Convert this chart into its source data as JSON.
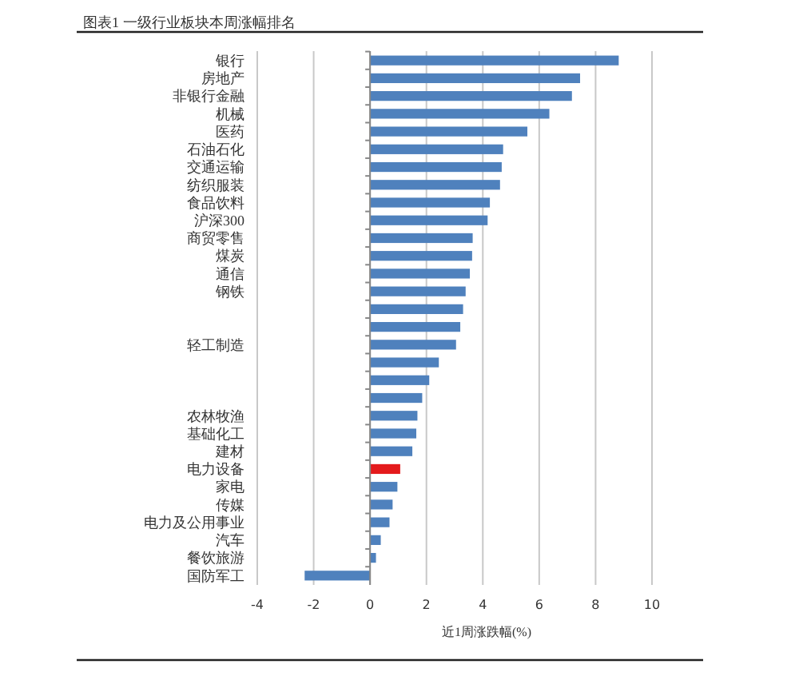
{
  "chart_data": {
    "type": "bar",
    "orientation": "horizontal",
    "title": "图表1 一级行业板块本周涨幅排名",
    "xlabel": "近1周涨跌幅(%)",
    "categories": [
      "银行",
      "房地产",
      "非银行金融",
      "机械",
      "医药",
      "石油石化",
      "交通运输",
      "纺织服装",
      "食品饮料",
      "沪深300",
      "商贸零售",
      "煤炭",
      "通信",
      "钢铁",
      null,
      null,
      "轻工制造",
      null,
      null,
      null,
      "农林牧渔",
      "基础化工",
      "建材",
      "电力设备",
      "家电",
      "传媒",
      "电力及公用事业",
      "汽车",
      "餐饮旅游",
      "国防军工"
    ],
    "values": [
      8.82,
      7.45,
      7.16,
      6.36,
      5.58,
      4.72,
      4.67,
      4.61,
      4.25,
      4.17,
      3.64,
      3.62,
      3.54,
      3.39,
      3.3,
      3.2,
      3.05,
      2.44,
      2.1,
      1.85,
      1.68,
      1.64,
      1.5,
      1.07,
      0.97,
      0.8,
      0.69,
      0.38,
      0.21,
      -2.32
    ],
    "colors": [
      "#4f81bd",
      "#4f81bd",
      "#4f81bd",
      "#4f81bd",
      "#4f81bd",
      "#4f81bd",
      "#4f81bd",
      "#4f81bd",
      "#4f81bd",
      "#4f81bd",
      "#4f81bd",
      "#4f81bd",
      "#4f81bd",
      "#4f81bd",
      "#4f81bd",
      "#4f81bd",
      "#4f81bd",
      "#4f81bd",
      "#4f81bd",
      "#4f81bd",
      "#4f81bd",
      "#4f81bd",
      "#4f81bd",
      "#e41a1c",
      "#4f81bd",
      "#4f81bd",
      "#4f81bd",
      "#4f81bd",
      "#4f81bd",
      "#4f81bd"
    ],
    "xlim": [
      -4,
      10
    ],
    "xticks": [
      -4,
      -2,
      0,
      2,
      4,
      6,
      8,
      10
    ],
    "grid": "x"
  }
}
